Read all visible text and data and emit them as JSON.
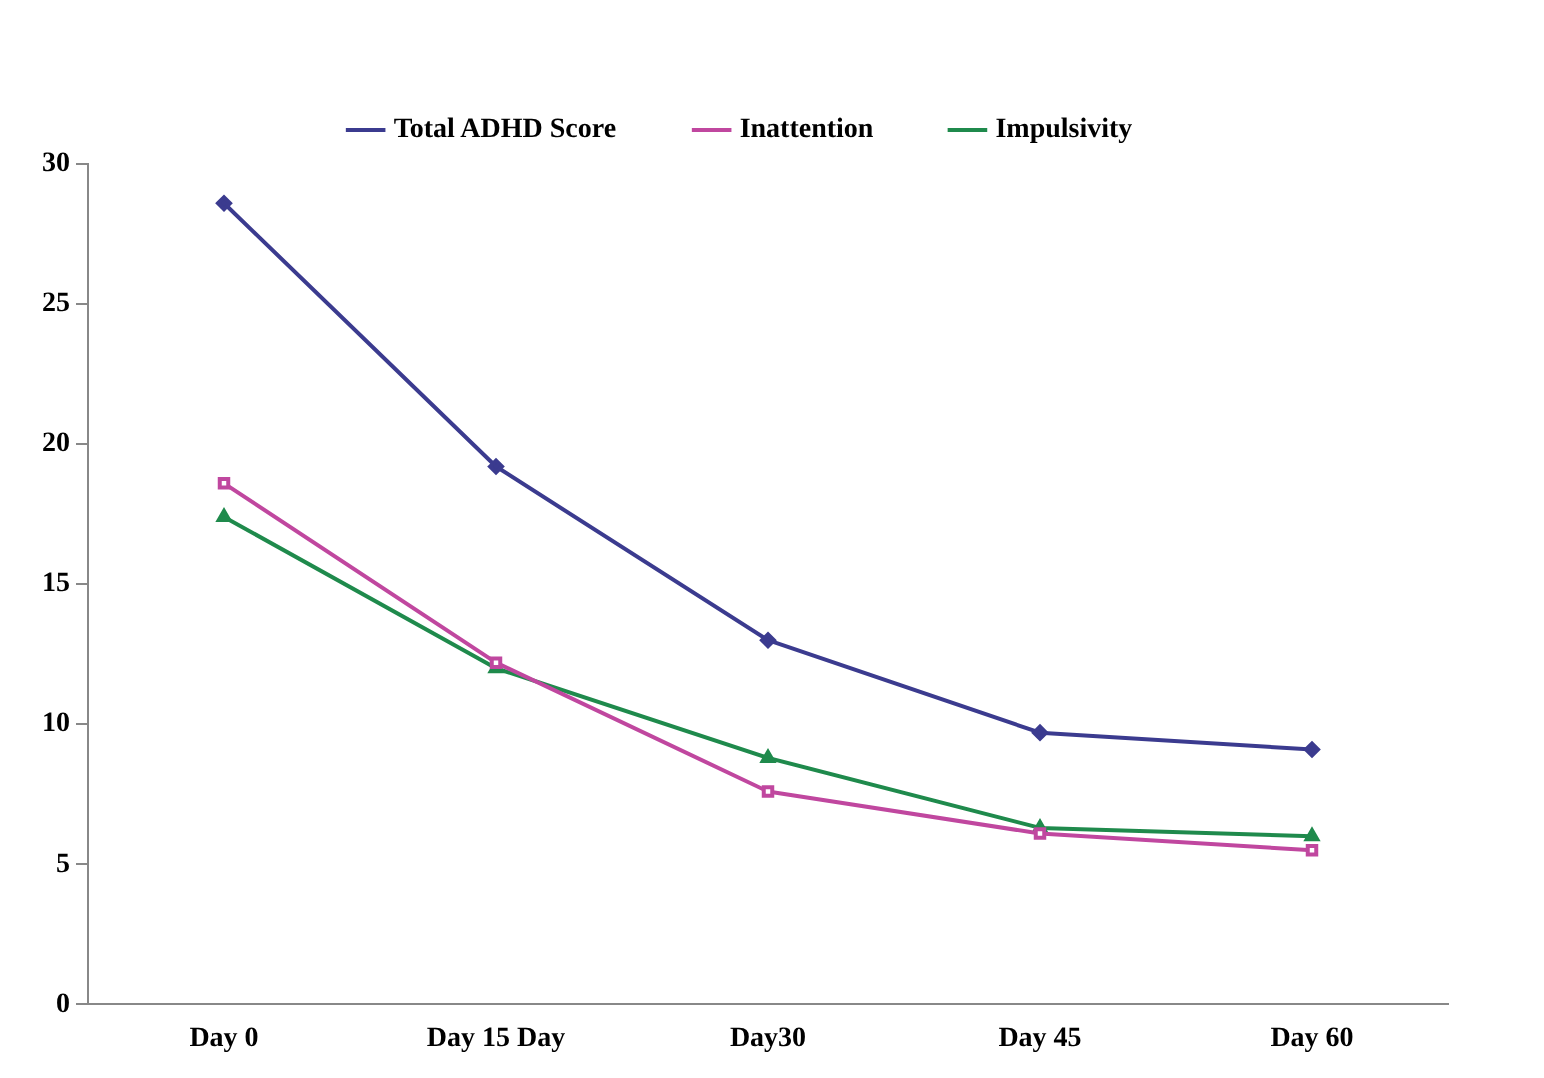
{
  "chart_data": {
    "type": "line",
    "categories": [
      "Day 0",
      "Day 15 Day",
      "Day30",
      "Day 45",
      "Day 60"
    ],
    "series": [
      {
        "name": "Total ADHD Score",
        "color": "#3b3b8f",
        "marker": "diamond",
        "values": [
          28.6,
          19.2,
          13.0,
          9.7,
          9.1
        ]
      },
      {
        "name": "Inattention",
        "color": "#c0479f",
        "marker": "square",
        "values": [
          18.6,
          12.2,
          7.6,
          6.1,
          5.5
        ]
      },
      {
        "name": "Impulsivity",
        "color": "#1f8a4c",
        "marker": "triangle",
        "values": [
          17.4,
          12.0,
          8.8,
          6.3,
          6.0
        ]
      }
    ],
    "ylim": [
      0,
      30
    ],
    "yticks": [
      0,
      5,
      10,
      15,
      20,
      25,
      30
    ],
    "grid": false,
    "legend": "top",
    "line_style": "solid"
  }
}
